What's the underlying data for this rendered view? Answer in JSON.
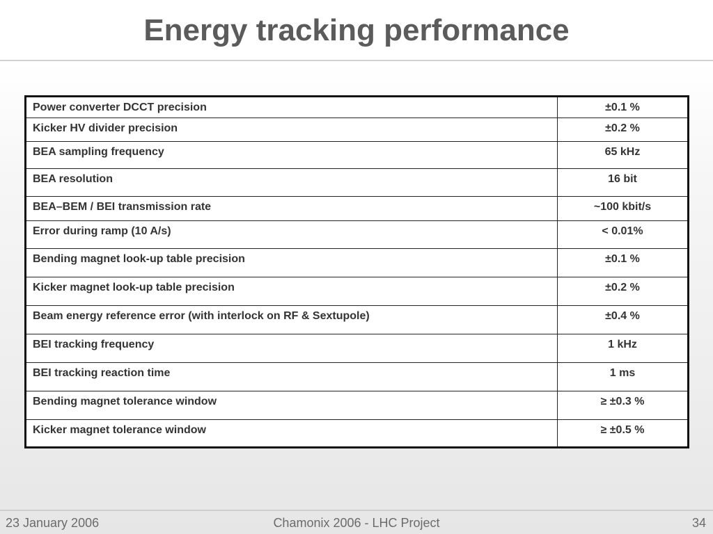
{
  "slide": {
    "title": "Energy tracking performance"
  },
  "table": {
    "rows": [
      {
        "param": "Power converter DCCT precision",
        "value": "±0.1 %"
      },
      {
        "param": "Kicker HV divider precision",
        "value": "±0.2 %"
      },
      {
        "param": "BEA sampling frequency",
        "value": "65 kHz"
      },
      {
        "param": "BEA resolution",
        "value": "16 bit"
      },
      {
        "param": "BEA–BEM / BEI transmission rate",
        "value": "~100 kbit/s"
      },
      {
        "param": "Error during ramp (10 A/s)",
        "value": "< 0.01%"
      },
      {
        "param": "Bending magnet look-up table precision",
        "value": "±0.1 %"
      },
      {
        "param": "Kicker magnet look-up table precision",
        "value": "±0.2 %"
      },
      {
        "param": "Beam energy reference error (with interlock on RF & Sextupole)",
        "value": "±0.4 %"
      },
      {
        "param": "BEI tracking frequency",
        "value": "1 kHz"
      },
      {
        "param": "BEI tracking reaction time",
        "value": "1 ms"
      },
      {
        "param": "Bending magnet tolerance window",
        "value": "≥ ±0.3 %"
      },
      {
        "param": "Kicker magnet tolerance window",
        "value": "≥ ±0.5 %"
      }
    ]
  },
  "footer": {
    "date": "23 January 2006",
    "event": "Chamonix 2006 - LHC Project",
    "page": "34"
  }
}
